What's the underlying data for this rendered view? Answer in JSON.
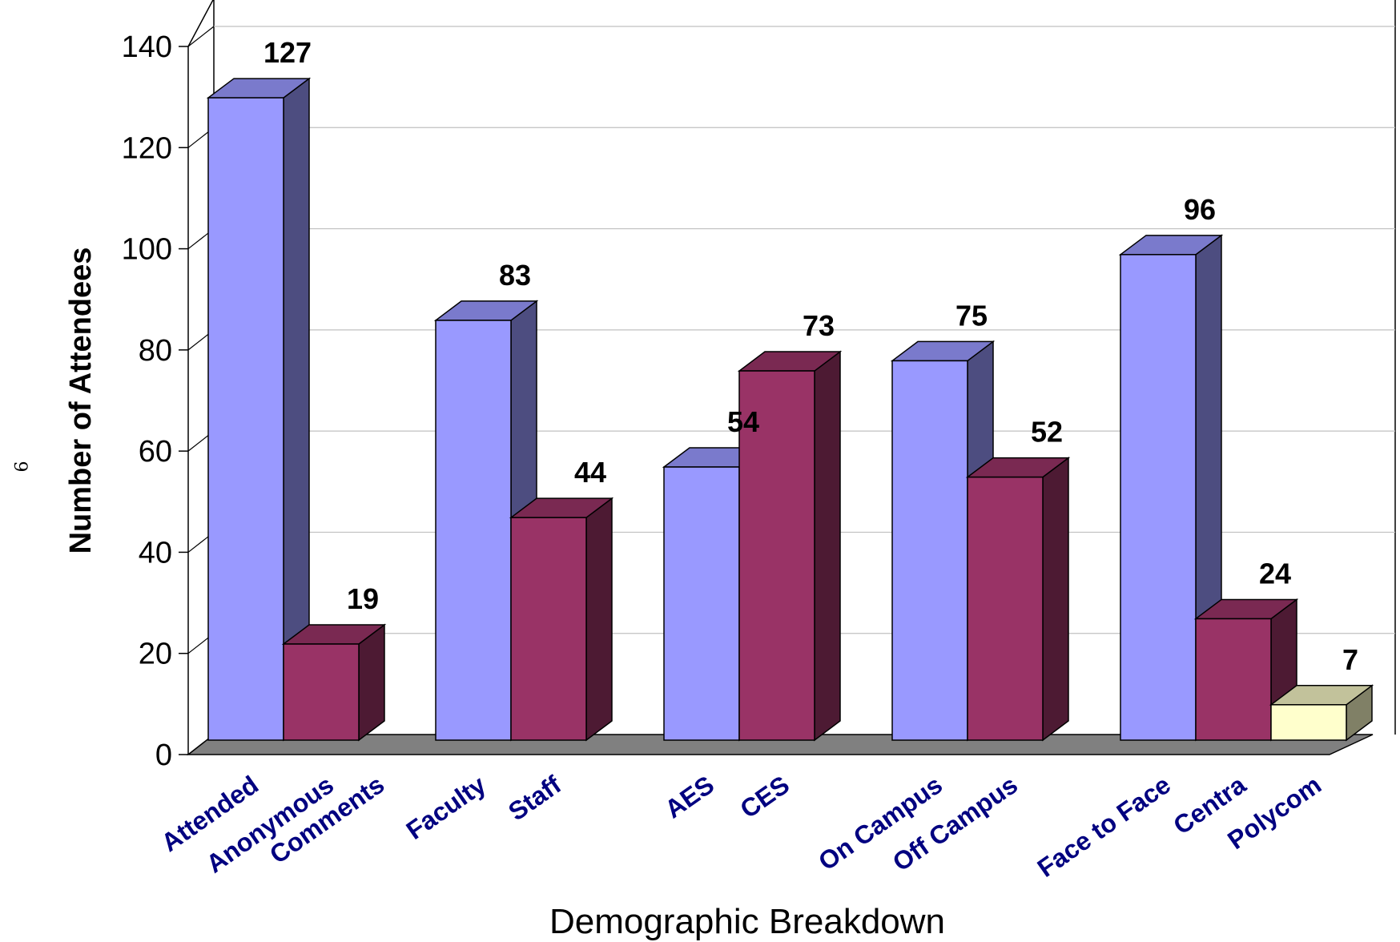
{
  "page_number": "6",
  "colors": {
    "blue_front": "#9999ff",
    "blue_top": "#7a7acc",
    "blue_side": "#4d4d80",
    "maroon_front": "#993366",
    "maroon_top": "#7a2952",
    "maroon_side": "#4d1a33",
    "yellow_front": "#ffffcc",
    "yellow_top": "#c2c29b",
    "yellow_side": "#808066",
    "floor": "#808080",
    "label_text": "#000080",
    "grid": "#c0c0c0"
  },
  "chart_data": {
    "type": "bar",
    "style": "3d-clustered",
    "xlabel": "Demographic Breakdown",
    "ylabel": "Number of Attendees",
    "ylim": [
      0,
      140
    ],
    "yticks": [
      0,
      20,
      40,
      60,
      80,
      100,
      120,
      140
    ],
    "grid": true,
    "groups": [
      {
        "bars": [
          {
            "label": "Attended",
            "value": 127,
            "color": "blue"
          },
          {
            "label": "Anonymous Comments",
            "value": 19,
            "color": "maroon"
          }
        ]
      },
      {
        "bars": [
          {
            "label": "Faculty",
            "value": 83,
            "color": "blue"
          },
          {
            "label": "Staff",
            "value": 44,
            "color": "maroon"
          }
        ]
      },
      {
        "bars": [
          {
            "label": "AES",
            "value": 54,
            "color": "blue"
          },
          {
            "label": "CES",
            "value": 73,
            "color": "maroon"
          }
        ]
      },
      {
        "bars": [
          {
            "label": "On Campus",
            "value": 75,
            "color": "blue"
          },
          {
            "label": "Off Campus",
            "value": 52,
            "color": "maroon"
          }
        ]
      },
      {
        "bars": [
          {
            "label": "Face to Face",
            "value": 96,
            "color": "blue"
          },
          {
            "label": "Centra",
            "value": 24,
            "color": "maroon"
          },
          {
            "label": "Polycom",
            "value": 7,
            "color": "yellow"
          }
        ]
      }
    ]
  }
}
